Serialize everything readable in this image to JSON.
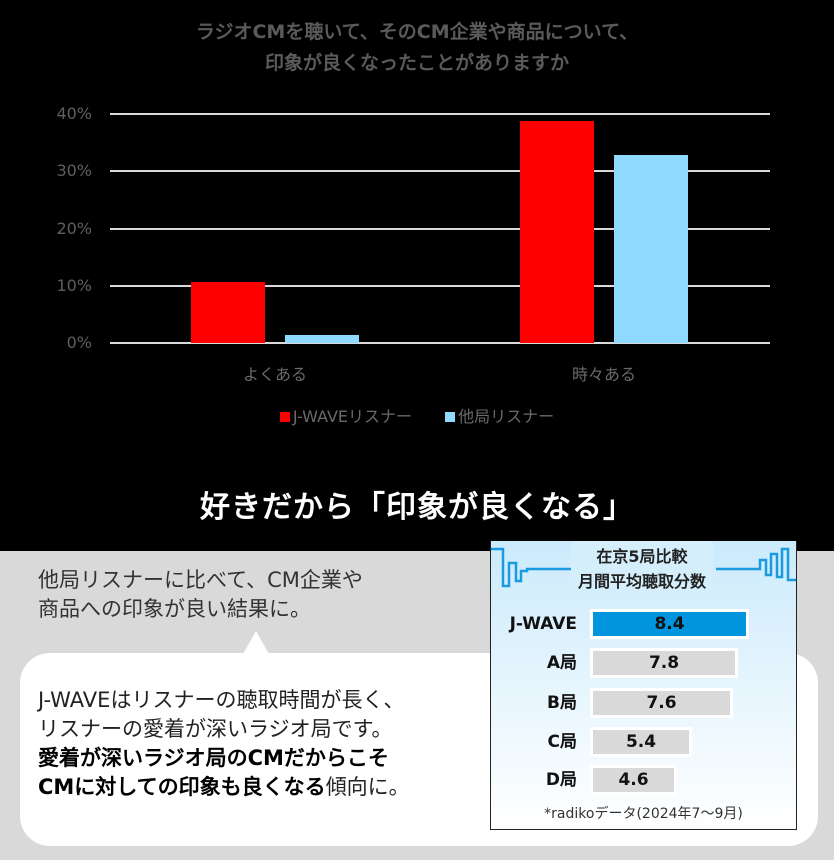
{
  "chart_data": {
    "type": "bar",
    "title": "ラジオCMを聴いて、そのCM企業や商品について、印象が良くなったことがありますか",
    "title_lines": [
      "ラジオCMを聴いて、そのCM企業や商品について、",
      "印象が良くなったことがありますか"
    ],
    "categories": [
      "よくある",
      "時々ある"
    ],
    "series": [
      {
        "name": "J-WAVEリスナー",
        "color": "#ff0000",
        "values": [
          10.7,
          38.8
        ]
      },
      {
        "name": "他局リスナー",
        "color": "#8fd9ff",
        "values": [
          1.4,
          32.9
        ]
      }
    ],
    "xlabel": "",
    "ylabel": "",
    "ylim": [
      0,
      40
    ],
    "yticks": [
      "0%",
      "10%",
      "20%",
      "30%",
      "40%"
    ],
    "grid": true,
    "legend_position": "bottom"
  },
  "headline": "好きだから「印象が良くなる」",
  "lead": {
    "line1": "他局リスナーに比べて、CM企業や",
    "line2": "商品への印象が良い結果に。"
  },
  "bubble": {
    "line1": "J-WAVEはリスナーの聴取時間が長く、",
    "line2": "リスナーの愛着が深いラジオ局です。",
    "line3_bold": "愛着が深いラジオ局のCMだからこそ",
    "line4_bold": "CMに対しての印象も良くなる",
    "line4_normal": "傾向に。"
  },
  "panel": {
    "title_line1": "在京5局比較",
    "title_line2": "月間平均聴取分数",
    "rows": [
      {
        "label": "J-WAVE",
        "value": "8.4",
        "color": "#0095de"
      },
      {
        "label": "A局",
        "value": "7.8",
        "color": "#d9d9d9"
      },
      {
        "label": "B局",
        "value": "7.6",
        "color": "#d9d9d9"
      },
      {
        "label": "C局",
        "value": "5.4",
        "color": "#d9d9d9"
      },
      {
        "label": "D局",
        "value": "4.6",
        "color": "#d9d9d9"
      }
    ],
    "note": "*radikoデータ(2024年7〜9月)",
    "wave_color": "#1a9be0"
  }
}
